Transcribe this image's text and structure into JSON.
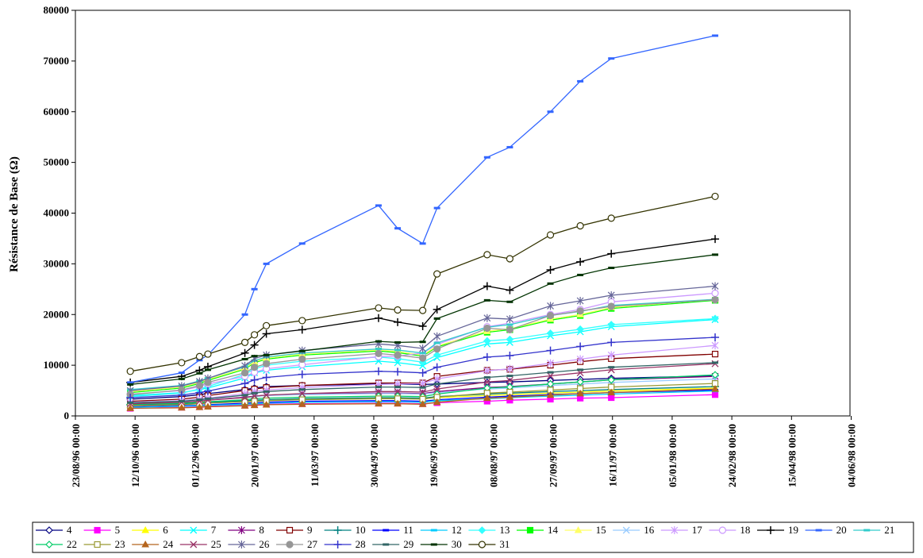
{
  "chart_data": {
    "type": "line",
    "title": "",
    "ylabel": "Résistance de Base (Ω)",
    "xlabel": "",
    "ylim": [
      0,
      80000
    ],
    "yticks": [
      0,
      10000,
      20000,
      30000,
      40000,
      50000,
      60000,
      70000,
      80000
    ],
    "xlim": [
      "1996-08-23",
      "1998-06-03"
    ],
    "xtick_labels": [
      "23/08/96 00:00",
      "12/10/96 00:00",
      "01/12/96 00:00",
      "20/01/97 00:00",
      "11/03/97 00:00",
      "30/04/97 00:00",
      "19/06/97 00:00",
      "08/08/97 00:00",
      "27/09/97 00:00",
      "16/11/97 00:00",
      "05/01/98 00:00",
      "24/02/98 00:00",
      "15/04/98 00:00",
      "04/06/98 00:00"
    ],
    "grid": false,
    "legend_position": "bottom",
    "x": [
      "1996-10-08",
      "1996-11-20",
      "1996-12-05",
      "1996-12-12",
      "1997-01-12",
      "1997-01-20",
      "1997-01-30",
      "1997-03-01",
      "1997-05-04",
      "1997-05-20",
      "1997-06-10",
      "1997-06-22",
      "1997-08-03",
      "1997-08-22",
      "1997-09-25",
      "1997-10-20",
      "1997-11-15",
      "1998-02-10"
    ],
    "series": [
      {
        "name": "4",
        "color": "#000080",
        "marker": "diamond-open",
        "values": [
          3300,
          3800,
          4200,
          4400,
          5200,
          5500,
          5800,
          6000,
          6300,
          6300,
          6200,
          6300,
          6600,
          6700,
          7000,
          7200,
          7400,
          7900
        ]
      },
      {
        "name": "5",
        "color": "#ff00ff",
        "marker": "square",
        "values": [
          1500,
          1700,
          1800,
          1900,
          2100,
          2200,
          2300,
          2400,
          2500,
          2500,
          2400,
          2600,
          2900,
          3100,
          3300,
          3500,
          3600,
          4200
        ]
      },
      {
        "name": "6",
        "color": "#ffff00",
        "marker": "triangle",
        "values": [
          2100,
          2300,
          2500,
          2600,
          2900,
          3000,
          3100,
          3300,
          3500,
          3500,
          3400,
          3600,
          4000,
          4200,
          4500,
          4700,
          4900,
          5500
        ]
      },
      {
        "name": "7",
        "color": "#00ffff",
        "marker": "x",
        "values": [
          4000,
          4600,
          5200,
          5500,
          7500,
          8500,
          9000,
          9700,
          10800,
          10500,
          9900,
          11500,
          14200,
          14500,
          15800,
          16600,
          17600,
          19000
        ]
      },
      {
        "name": "8",
        "color": "#800080",
        "marker": "star",
        "values": [
          2600,
          2900,
          3100,
          3200,
          3700,
          3900,
          4100,
          4300,
          4500,
          4500,
          4400,
          4800,
          5600,
          5800,
          6300,
          6700,
          7100,
          7800
        ]
      },
      {
        "name": "9",
        "color": "#800000",
        "marker": "square-open",
        "values": [
          2900,
          3300,
          3700,
          4000,
          5000,
          5300,
          5600,
          6000,
          6500,
          6500,
          6500,
          7800,
          9000,
          9200,
          10000,
          10700,
          11300,
          12200
        ]
      },
      {
        "name": "10",
        "color": "#008080",
        "marker": "plus",
        "values": [
          2200,
          2400,
          2600,
          2700,
          3000,
          3100,
          3200,
          3400,
          3600,
          3600,
          3500,
          3800,
          4300,
          4500,
          4800,
          5000,
          5200,
          5800
        ]
      },
      {
        "name": "11",
        "color": "#0000ff",
        "marker": "dash",
        "values": [
          1800,
          2000,
          2100,
          2200,
          2500,
          2600,
          2700,
          2900,
          3000,
          3000,
          2900,
          3200,
          3700,
          3900,
          4200,
          4400,
          4600,
          5100
        ]
      },
      {
        "name": "12",
        "color": "#00ccff",
        "marker": "dash",
        "values": [
          1700,
          1900,
          2000,
          2100,
          2300,
          2400,
          2500,
          2700,
          2800,
          2800,
          2700,
          3000,
          3400,
          3600,
          3900,
          4100,
          4300,
          4900
        ]
      },
      {
        "name": "13",
        "color": "#33ffff",
        "marker": "diamond",
        "values": [
          3800,
          4500,
          5300,
          5800,
          8200,
          9300,
          10000,
          10800,
          11600,
          11300,
          10600,
          12000,
          14800,
          15100,
          16300,
          17100,
          18000,
          19200
        ]
      },
      {
        "name": "14",
        "color": "#00ff00",
        "marker": "square",
        "values": [
          4600,
          5500,
          6400,
          7000,
          9200,
          10500,
          11200,
          12000,
          12800,
          12500,
          11800,
          13600,
          16500,
          17000,
          18900,
          19800,
          21200,
          22800
        ]
      },
      {
        "name": "15",
        "color": "#ffff66",
        "marker": "triangle",
        "values": [
          4800,
          5700,
          6600,
          7200,
          9400,
          10700,
          11400,
          12200,
          13000,
          12700,
          12000,
          13800,
          16700,
          17200,
          19100,
          20000,
          21400,
          23000
        ]
      },
      {
        "name": "16",
        "color": "#99ccff",
        "marker": "x",
        "values": [
          2500,
          2800,
          3000,
          3200,
          3600,
          3800,
          4000,
          4200,
          4400,
          4400,
          4300,
          4600,
          5300,
          5500,
          6000,
          6300,
          6600,
          7300
        ]
      },
      {
        "name": "17",
        "color": "#cc99ff",
        "marker": "star",
        "values": [
          2700,
          3000,
          3300,
          3500,
          4400,
          4800,
          5100,
          5600,
          6200,
          6300,
          6400,
          7300,
          8900,
          9300,
          10400,
          11200,
          12000,
          13900
        ]
      },
      {
        "name": "18",
        "color": "#cc99ff",
        "marker": "circle-open",
        "values": [
          4300,
          5000,
          5800,
          6300,
          7800,
          8600,
          9300,
          10100,
          11700,
          11800,
          12400,
          14100,
          17600,
          18300,
          20000,
          21000,
          22500,
          24200
        ]
      },
      {
        "name": "19",
        "color": "#000000",
        "marker": "plus",
        "values": [
          6600,
          7800,
          9000,
          9700,
          12400,
          14000,
          16200,
          17000,
          19300,
          18500,
          17700,
          21000,
          25600,
          24800,
          28800,
          30400,
          32000,
          34900
        ]
      },
      {
        "name": "20",
        "color": "#3366ff",
        "marker": "dash",
        "values": [
          6600,
          8500,
          11000,
          12000,
          20000,
          25000,
          30000,
          34000,
          41500,
          37000,
          34000,
          41000,
          51000,
          53000,
          60000,
          66000,
          70500,
          75000
        ]
      },
      {
        "name": "21",
        "color": "#33cccc",
        "marker": "dash",
        "values": [
          5200,
          6000,
          6900,
          7400,
          9700,
          10900,
          11600,
          12400,
          13200,
          13000,
          12400,
          14400,
          17500,
          18000,
          19800,
          20600,
          21800,
          23000
        ]
      },
      {
        "name": "22",
        "color": "#00cc66",
        "marker": "diamond-open",
        "values": [
          2300,
          2500,
          2700,
          2800,
          3200,
          3400,
          3500,
          3700,
          3900,
          3900,
          3800,
          4300,
          5500,
          5700,
          6300,
          6700,
          7100,
          8100
        ]
      },
      {
        "name": "23",
        "color": "#999933",
        "marker": "square-open",
        "values": [
          2000,
          2200,
          2400,
          2500,
          2800,
          2900,
          3000,
          3200,
          3400,
          3400,
          3300,
          3700,
          4500,
          4700,
          5100,
          5400,
          5700,
          6400
        ]
      },
      {
        "name": "24",
        "color": "#b5651d",
        "marker": "triangle",
        "values": [
          1500,
          1600,
          1700,
          1800,
          2000,
          2100,
          2200,
          2300,
          2400,
          2400,
          2300,
          2700,
          3500,
          3700,
          4100,
          4400,
          4600,
          5300
        ]
      },
      {
        "name": "25",
        "color": "#993366",
        "marker": "x",
        "values": [
          2400,
          2700,
          2900,
          3100,
          3600,
          3900,
          4100,
          4400,
          4800,
          4800,
          4700,
          5300,
          6700,
          7000,
          7900,
          8500,
          9100,
          10300
        ]
      },
      {
        "name": "26",
        "color": "#666699",
        "marker": "star",
        "values": [
          5000,
          5900,
          6800,
          7400,
          9900,
          11300,
          12000,
          12900,
          14200,
          13900,
          13300,
          15700,
          19300,
          19100,
          21700,
          22700,
          23800,
          25600
        ]
      },
      {
        "name": "27",
        "color": "#969696",
        "marker": "circle",
        "values": [
          4200,
          5100,
          6000,
          6600,
          8500,
          9600,
          10300,
          11200,
          12300,
          12000,
          11400,
          13200,
          17300,
          17000,
          19800,
          20700,
          21600,
          22900
        ]
      },
      {
        "name": "28",
        "color": "#3333cc",
        "marker": "plus",
        "values": [
          3600,
          4100,
          4600,
          4900,
          6400,
          7100,
          7600,
          8200,
          8800,
          8700,
          8500,
          9600,
          11600,
          11900,
          12900,
          13700,
          14500,
          15500
        ]
      },
      {
        "name": "29",
        "color": "#336666",
        "marker": "dash",
        "values": [
          2600,
          2900,
          3200,
          3400,
          4100,
          4500,
          4800,
          5200,
          5700,
          5700,
          5600,
          6300,
          7600,
          7900,
          8600,
          9100,
          9600,
          10500
        ]
      },
      {
        "name": "30",
        "color": "#003300",
        "marker": "dash",
        "values": [
          6200,
          7300,
          8400,
          9100,
          11200,
          11800,
          12000,
          12800,
          14700,
          14500,
          14600,
          19200,
          22800,
          22500,
          26100,
          27800,
          29200,
          31800
        ]
      },
      {
        "name": "31",
        "color": "#333300",
        "marker": "circle-open",
        "values": [
          8800,
          10500,
          11700,
          12200,
          14500,
          16000,
          17800,
          18800,
          21300,
          20900,
          20800,
          28000,
          31800,
          31000,
          35700,
          37500,
          39000,
          43300
        ]
      }
    ]
  }
}
